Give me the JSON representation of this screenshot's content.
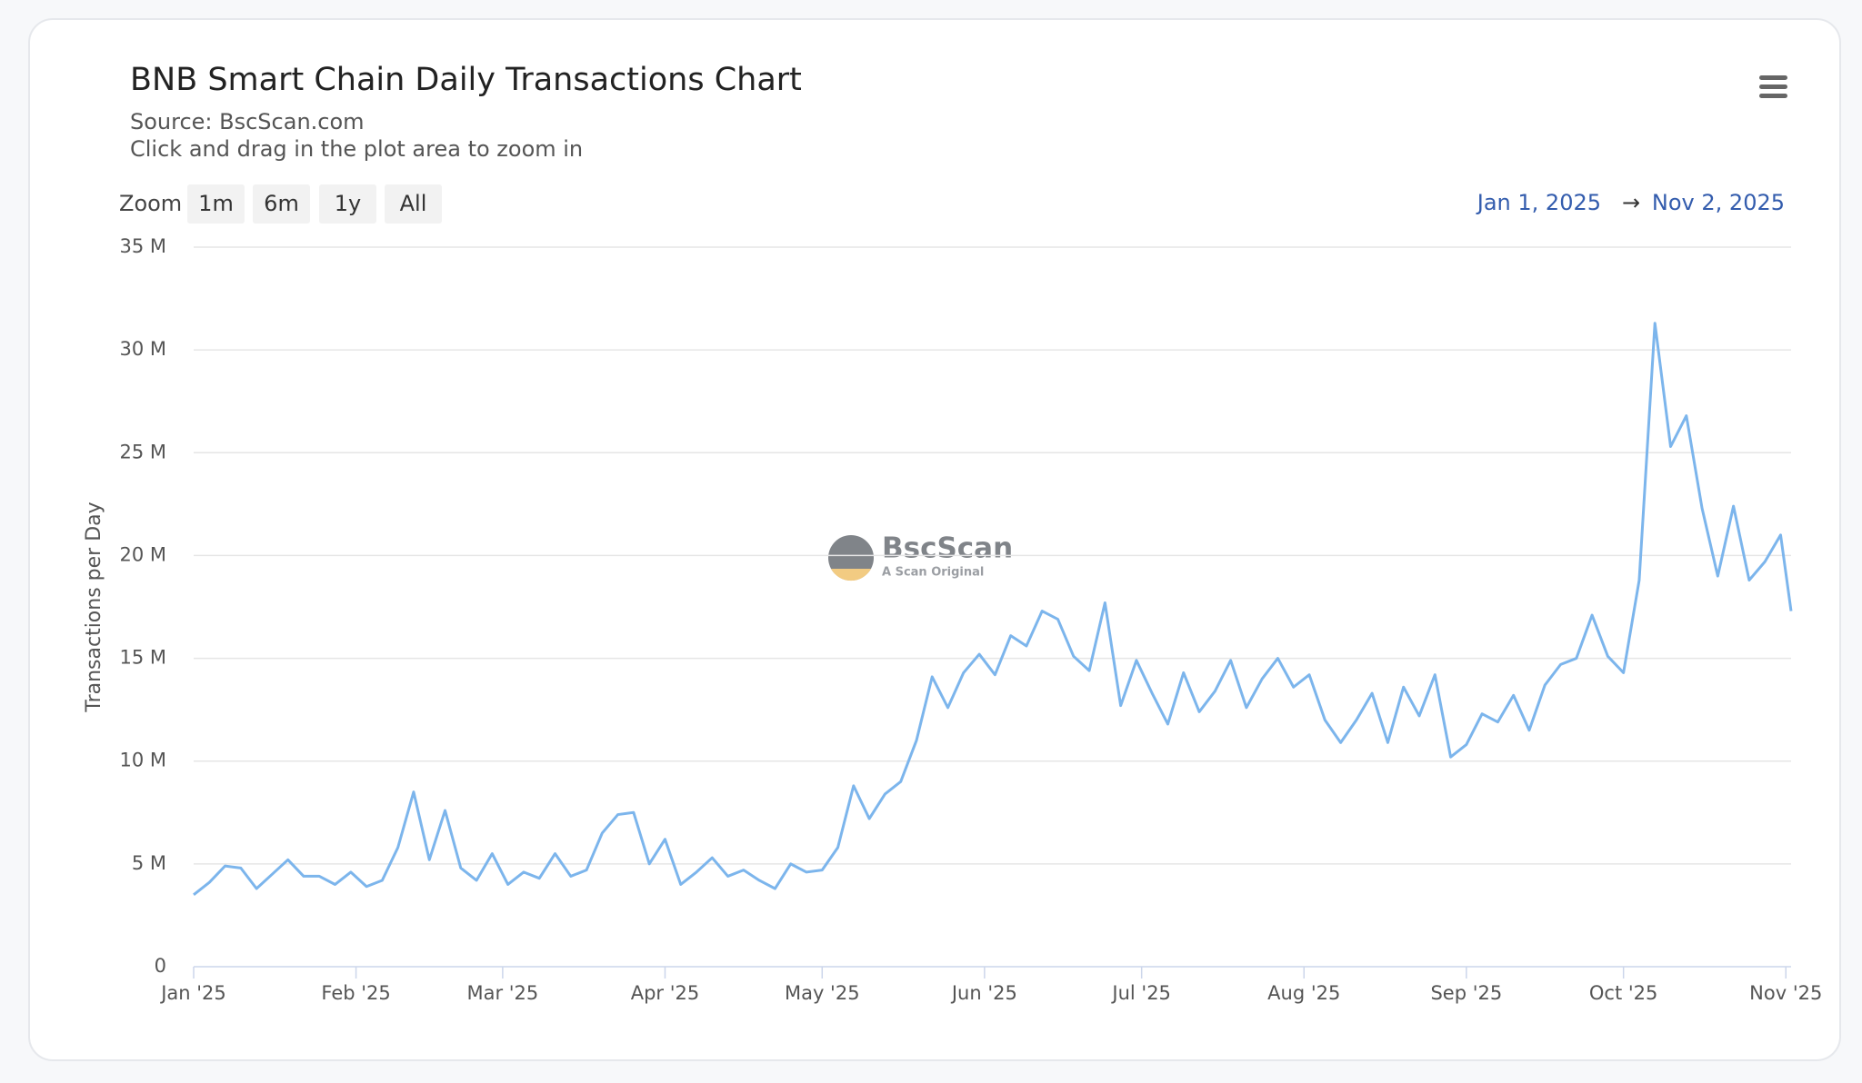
{
  "chart_data": {
    "type": "line",
    "title": "BNB Smart Chain Daily Transactions Chart",
    "subtitle": [
      "Source: BscScan.com",
      "Click and drag in the plot area to zoom in"
    ],
    "zoom_label": "Zoom",
    "zoom_buttons": [
      "1m",
      "6m",
      "1y",
      "All"
    ],
    "range_from": "Jan 1, 2025",
    "range_separator": "→",
    "range_to": "Nov 2, 2025",
    "watermark": {
      "name": "BscScan",
      "tagline": "A Scan Original"
    },
    "y_label": "Transactions per Day",
    "xlim": [
      "2025-01-01",
      "2025-11-02"
    ],
    "xticks": [
      {
        "value": "2025-01-01",
        "label": "Jan '25"
      },
      {
        "value": "2025-02-01",
        "label": "Feb '25"
      },
      {
        "value": "2025-03-01",
        "label": "Mar '25"
      },
      {
        "value": "2025-04-01",
        "label": "Apr '25"
      },
      {
        "value": "2025-05-01",
        "label": "May '25"
      },
      {
        "value": "2025-06-01",
        "label": "Jun '25"
      },
      {
        "value": "2025-07-01",
        "label": "Jul '25"
      },
      {
        "value": "2025-08-01",
        "label": "Aug '25"
      },
      {
        "value": "2025-09-01",
        "label": "Sep '25"
      },
      {
        "value": "2025-10-01",
        "label": "Oct '25"
      },
      {
        "value": "2025-11-01",
        "label": "Nov '25"
      }
    ],
    "ylim": [
      0,
      35000000
    ],
    "yticks": [
      0,
      {
        "value": 5000000,
        "label": "5 M"
      },
      {
        "value": 10000000,
        "label": "10 M"
      },
      {
        "value": 15000000,
        "label": "15 M"
      },
      {
        "value": 20000000,
        "label": "20 M"
      },
      {
        "value": 25000000,
        "label": "25 M"
      },
      {
        "value": 30000000,
        "label": "30 M"
      },
      {
        "value": 35000000,
        "label": "35 M"
      }
    ],
    "grid": true,
    "x": [
      "2025-01-01",
      "2025-01-04",
      "2025-01-07",
      "2025-01-10",
      "2025-01-13",
      "2025-01-16",
      "2025-01-19",
      "2025-01-22",
      "2025-01-25",
      "2025-01-28",
      "2025-01-31",
      "2025-02-03",
      "2025-02-06",
      "2025-02-09",
      "2025-02-12",
      "2025-02-15",
      "2025-02-18",
      "2025-02-21",
      "2025-02-24",
      "2025-02-27",
      "2025-03-02",
      "2025-03-05",
      "2025-03-08",
      "2025-03-11",
      "2025-03-14",
      "2025-03-17",
      "2025-03-20",
      "2025-03-23",
      "2025-03-26",
      "2025-03-29",
      "2025-04-01",
      "2025-04-04",
      "2025-04-07",
      "2025-04-10",
      "2025-04-13",
      "2025-04-16",
      "2025-04-19",
      "2025-04-22",
      "2025-04-25",
      "2025-04-28",
      "2025-05-01",
      "2025-05-04",
      "2025-05-07",
      "2025-05-10",
      "2025-05-13",
      "2025-05-16",
      "2025-05-19",
      "2025-05-22",
      "2025-05-25",
      "2025-05-28",
      "2025-05-31",
      "2025-06-03",
      "2025-06-06",
      "2025-06-09",
      "2025-06-12",
      "2025-06-15",
      "2025-06-18",
      "2025-06-21",
      "2025-06-24",
      "2025-06-27",
      "2025-06-30",
      "2025-07-03",
      "2025-07-06",
      "2025-07-09",
      "2025-07-12",
      "2025-07-15",
      "2025-07-18",
      "2025-07-21",
      "2025-07-24",
      "2025-07-27",
      "2025-07-30",
      "2025-08-02",
      "2025-08-05",
      "2025-08-08",
      "2025-08-11",
      "2025-08-14",
      "2025-08-17",
      "2025-08-20",
      "2025-08-23",
      "2025-08-26",
      "2025-08-29",
      "2025-09-01",
      "2025-09-04",
      "2025-09-07",
      "2025-09-10",
      "2025-09-13",
      "2025-09-16",
      "2025-09-19",
      "2025-09-22",
      "2025-09-25",
      "2025-09-28",
      "2025-10-01",
      "2025-10-04",
      "2025-10-07",
      "2025-10-10",
      "2025-10-13",
      "2025-10-16",
      "2025-10-19",
      "2025-10-22",
      "2025-10-25",
      "2025-10-28",
      "2025-10-31",
      "2025-11-02"
    ],
    "series": [
      {
        "name": "Transactions per Day",
        "color": "#7cb5ec",
        "values": [
          3500000,
          4100000,
          4900000,
          4800000,
          3800000,
          4500000,
          5200000,
          4400000,
          4400000,
          4000000,
          4600000,
          3900000,
          4200000,
          5800000,
          8500000,
          5200000,
          7600000,
          4800000,
          4200000,
          5500000,
          4000000,
          4600000,
          4300000,
          5500000,
          4400000,
          4700000,
          6500000,
          7400000,
          7500000,
          5000000,
          6200000,
          4000000,
          4600000,
          5300000,
          4400000,
          4700000,
          4200000,
          3800000,
          5000000,
          4600000,
          4700000,
          5800000,
          8800000,
          7200000,
          8400000,
          9000000,
          11000000,
          14100000,
          12600000,
          14300000,
          15200000,
          14200000,
          16100000,
          15600000,
          17300000,
          16900000,
          15100000,
          14400000,
          17700000,
          12700000,
          14900000,
          13300000,
          11800000,
          14300000,
          12400000,
          13400000,
          14900000,
          12600000,
          14000000,
          15000000,
          13600000,
          14200000,
          12000000,
          10900000,
          12000000,
          13300000,
          10900000,
          13600000,
          12200000,
          14200000,
          10200000,
          10800000,
          12300000,
          11900000,
          13200000,
          11500000,
          13700000,
          14700000,
          15000000,
          17100000,
          15100000,
          14300000,
          18800000,
          31300000,
          25300000,
          26800000,
          22300000,
          19000000,
          22400000,
          18800000,
          19700000,
          21000000,
          17300000
        ]
      }
    ]
  }
}
